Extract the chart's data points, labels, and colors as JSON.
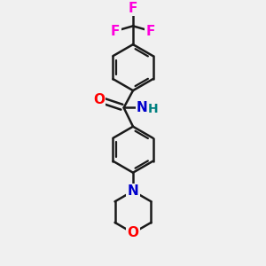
{
  "background_color": "#f0f0f0",
  "bond_color": "#1a1a1a",
  "bond_width": 1.8,
  "atom_colors": {
    "F": "#ff00dd",
    "O": "#ff0000",
    "N": "#0000cc",
    "H": "#008080"
  },
  "font_size": 11,
  "font_size_h": 10,
  "ring_r": 0.55,
  "morph_r": 0.5
}
